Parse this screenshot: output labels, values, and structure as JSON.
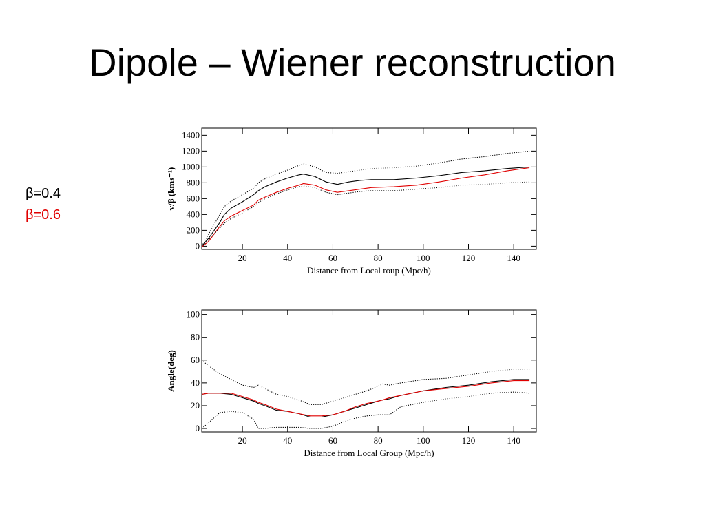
{
  "slide_title": "Dipole – Wiener reconstruction",
  "chart_data": [
    {
      "type": "line",
      "xlabel": "Distance from Local roup (Mpc/h)",
      "ylabel": "v/β (kms⁻¹)",
      "xlim": [
        2,
        150
      ],
      "ylim": [
        -40,
        1490
      ],
      "xticks": [
        20,
        40,
        60,
        80,
        100,
        120,
        140
      ],
      "yticks": [
        0,
        200,
        400,
        600,
        800,
        1000,
        1200,
        1400
      ],
      "x": [
        2,
        5,
        10,
        12,
        15,
        20,
        25,
        27,
        30,
        35,
        40,
        45,
        47,
        52,
        57,
        62,
        67,
        72,
        77,
        87,
        97,
        107,
        117,
        127,
        137,
        147
      ],
      "series": [
        {
          "name": "β=0.4",
          "color": "#000000",
          "style": "solid",
          "values": [
            0,
            100,
            300,
            400,
            480,
            560,
            650,
            700,
            750,
            810,
            860,
            900,
            910,
            880,
            810,
            780,
            810,
            830,
            840,
            840,
            860,
            890,
            930,
            950,
            980,
            1000
          ]
        },
        {
          "name": "β=0.6",
          "color": "#e00000",
          "style": "solid",
          "values": [
            -10,
            60,
            250,
            320,
            380,
            450,
            520,
            580,
            620,
            680,
            730,
            770,
            790,
            770,
            710,
            680,
            700,
            720,
            740,
            750,
            770,
            810,
            860,
            900,
            950,
            990
          ]
        },
        {
          "color": "#000000",
          "style": "dotted",
          "values": [
            0,
            150,
            400,
            500,
            570,
            650,
            730,
            800,
            850,
            910,
            960,
            1020,
            1040,
            1000,
            930,
            920,
            940,
            960,
            980,
            990,
            1010,
            1050,
            1100,
            1130,
            1170,
            1200
          ]
        },
        {
          "color": "#000000",
          "style": "dotted",
          "values": [
            -10,
            80,
            230,
            290,
            350,
            420,
            500,
            550,
            600,
            660,
            710,
            750,
            760,
            740,
            680,
            650,
            670,
            690,
            700,
            700,
            720,
            740,
            770,
            780,
            800,
            810
          ]
        }
      ]
    },
    {
      "type": "line",
      "xlabel": "Distance from Local Group (Mpc/h)",
      "ylabel": "Angle(deg)",
      "xlim": [
        2,
        150
      ],
      "ylim": [
        -3,
        104
      ],
      "xticks": [
        20,
        40,
        60,
        80,
        100,
        120,
        140
      ],
      "yticks": [
        0,
        20,
        40,
        60,
        80,
        100
      ],
      "x": [
        2,
        5,
        10,
        15,
        20,
        25,
        27,
        30,
        35,
        40,
        45,
        50,
        55,
        60,
        65,
        70,
        75,
        80,
        82,
        85,
        90,
        100,
        110,
        120,
        130,
        140,
        147
      ],
      "series": [
        {
          "color": "#000000",
          "style": "solid",
          "values": [
            30,
            31,
            31,
            30,
            27,
            24,
            22,
            20,
            16,
            15,
            13,
            10,
            10,
            12,
            15,
            18,
            21,
            24,
            25,
            26,
            29,
            33,
            36,
            38,
            41,
            43,
            43
          ]
        },
        {
          "color": "#e00000",
          "style": "solid",
          "values": [
            30,
            31,
            31,
            31,
            28,
            25,
            23,
            21,
            17,
            15,
            13,
            11,
            11,
            12,
            15,
            19,
            22,
            24,
            25,
            27,
            29,
            33,
            35,
            37,
            40,
            42,
            42
          ]
        },
        {
          "color": "#000000",
          "style": "dotted",
          "values": [
            60,
            55,
            48,
            43,
            38,
            36,
            38,
            35,
            30,
            28,
            25,
            21,
            21,
            24,
            27,
            30,
            33,
            37,
            39,
            38,
            40,
            43,
            44,
            47,
            50,
            52,
            52
          ]
        },
        {
          "color": "#000000",
          "style": "dotted",
          "values": [
            0,
            5,
            14,
            15,
            14,
            8,
            0,
            0,
            1,
            1,
            1,
            0,
            0,
            2,
            6,
            9,
            11,
            12,
            12,
            12,
            19,
            23,
            26,
            28,
            31,
            32,
            31
          ]
        }
      ]
    }
  ]
}
